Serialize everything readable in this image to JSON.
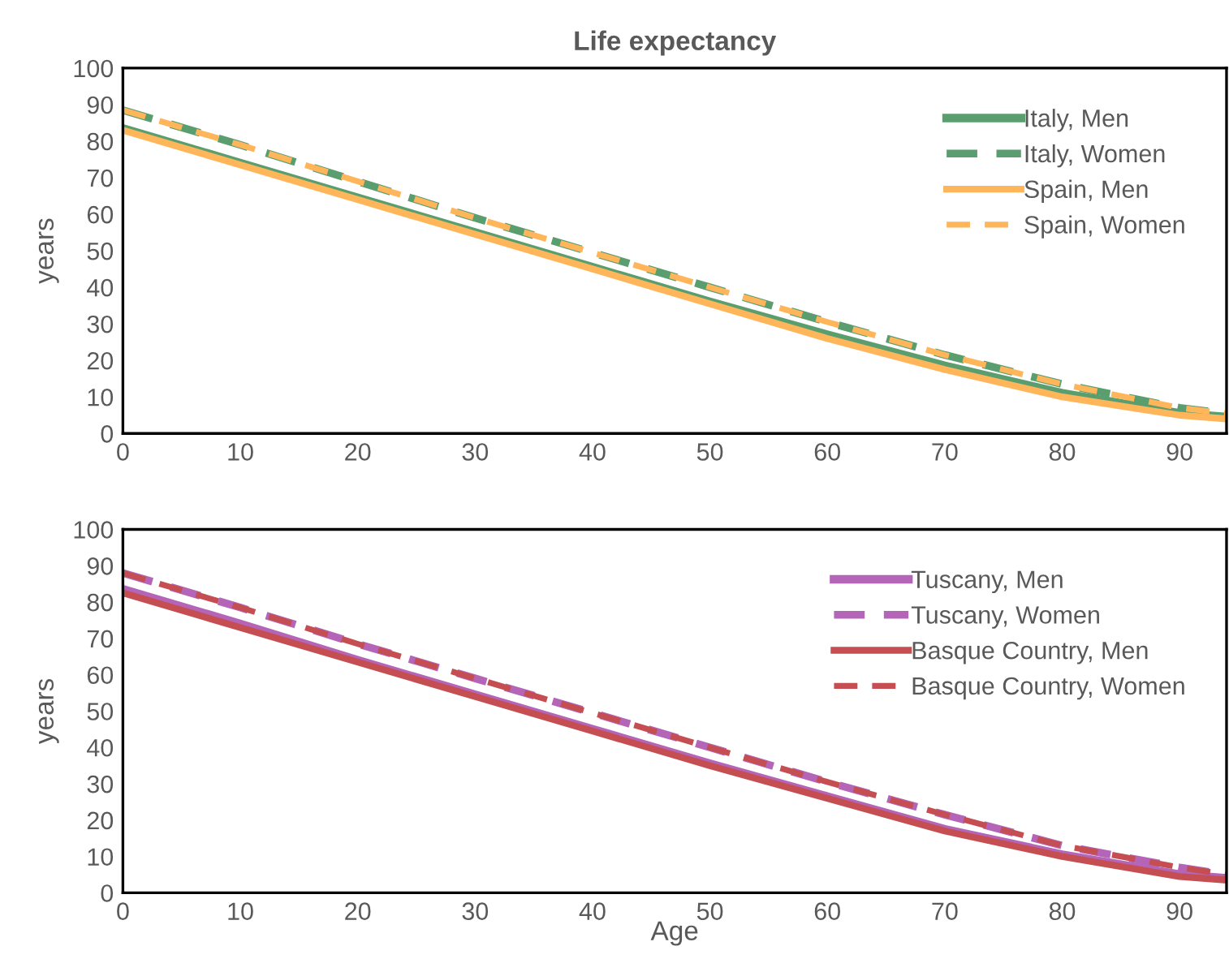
{
  "chart_data": [
    {
      "type": "line",
      "title": "Life expectancy",
      "ylabel": "years",
      "x": [
        0,
        10,
        20,
        30,
        40,
        50,
        60,
        70,
        80,
        90,
        94
      ],
      "xlim": [
        0,
        94
      ],
      "xticks": [
        0,
        10,
        20,
        30,
        40,
        50,
        60,
        70,
        80,
        90
      ],
      "ylim": [
        0,
        100
      ],
      "yticks": [
        0,
        10,
        20,
        30,
        40,
        50,
        60,
        70,
        80,
        90,
        100
      ],
      "grid": false,
      "legend": "top right",
      "marker": "none",
      "series": [
        {
          "name": "Italy, Men",
          "color": "#5a9e6f",
          "line_style": "solid",
          "values": [
            83.5,
            74,
            64.5,
            55,
            45.5,
            36,
            27,
            18.5,
            11,
            5.5,
            4.5
          ]
        },
        {
          "name": "Italy, Women",
          "color": "#5a9e6f",
          "line_style": "dashed",
          "values": [
            88.5,
            79,
            69,
            59,
            49.5,
            40,
            30.5,
            21.5,
            13.5,
            7,
            5.5
          ]
        },
        {
          "name": "Spain, Men",
          "color": "#ffb55a",
          "line_style": "solid",
          "values": [
            83,
            73.5,
            64,
            54.5,
            45,
            35.5,
            26,
            17.5,
            10,
            5,
            4
          ]
        },
        {
          "name": "Spain, Women",
          "color": "#ffb55a",
          "line_style": "dashed",
          "values": [
            88.5,
            79,
            69,
            59,
            49.5,
            40,
            30.5,
            21.5,
            13.5,
            7,
            5.5
          ]
        }
      ]
    },
    {
      "type": "line",
      "ylabel": "years",
      "xlabel": "Age",
      "x": [
        0,
        10,
        20,
        30,
        40,
        50,
        60,
        70,
        80,
        90,
        94
      ],
      "xlim": [
        0,
        94
      ],
      "xticks": [
        0,
        10,
        20,
        30,
        40,
        50,
        60,
        70,
        80,
        90
      ],
      "ylim": [
        0,
        100
      ],
      "yticks": [
        0,
        10,
        20,
        30,
        40,
        50,
        60,
        70,
        80,
        90,
        100
      ],
      "grid": false,
      "legend": "top right",
      "marker": "none",
      "series": [
        {
          "name": "Tuscany, Men",
          "color": "#b565b8",
          "line_style": "solid",
          "values": [
            83.5,
            74,
            64,
            54.5,
            45,
            35.5,
            26.5,
            17.5,
            10.5,
            5,
            4
          ]
        },
        {
          "name": "Tuscany, Women",
          "color": "#b565b8",
          "line_style": "dashed",
          "values": [
            88,
            78.5,
            68.5,
            59,
            49.5,
            40,
            30.5,
            21.5,
            13,
            7,
            5
          ]
        },
        {
          "name": "Basque Country, Men",
          "color": "#c44e52",
          "line_style": "solid",
          "values": [
            82.5,
            73,
            63.5,
            54,
            44.5,
            35,
            26,
            17,
            10,
            4.5,
            3.5
          ]
        },
        {
          "name": "Basque Country, Women",
          "color": "#c44e52",
          "line_style": "dashed",
          "values": [
            88,
            78.5,
            68.5,
            59,
            49.5,
            40,
            30.5,
            21.5,
            13,
            7,
            5
          ]
        }
      ]
    }
  ]
}
